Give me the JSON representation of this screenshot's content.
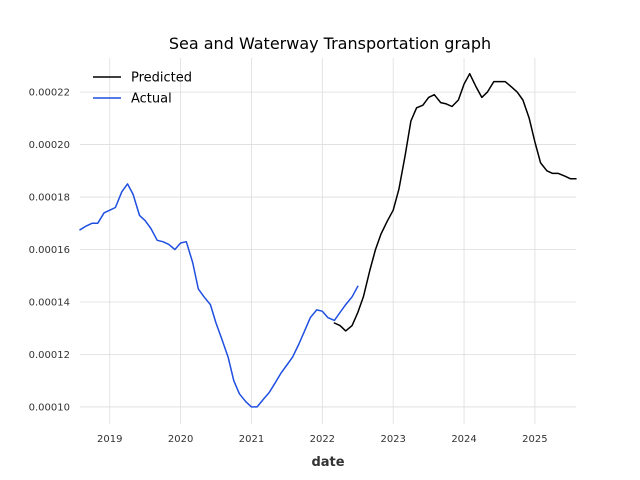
{
  "chart_data": {
    "type": "line",
    "title": "Sea and Waterway Transportation graph",
    "xlabel": "date",
    "ylabel": "",
    "xlim": [
      2018.58,
      2025.58
    ],
    "ylim": [
      9.35e-05,
      0.000233
    ],
    "x_ticks": [
      2019,
      2020,
      2021,
      2022,
      2023,
      2024,
      2025
    ],
    "x_tick_labels": [
      "2019",
      "2020",
      "2021",
      "2022",
      "2023",
      "2024",
      "2025"
    ],
    "y_ticks": [
      0.0001,
      0.00012,
      0.00014,
      0.00016,
      0.00018,
      0.0002,
      0.00022
    ],
    "y_tick_labels": [
      "0.00010",
      "0.00012",
      "0.00014",
      "0.00016",
      "0.00018",
      "0.00020",
      "0.00022"
    ],
    "grid": true,
    "legend_position": "top-left",
    "series": [
      {
        "name": "Predicted",
        "color": "#000000",
        "x": [
          2022.17,
          2022.25,
          2022.33,
          2022.42,
          2022.5,
          2022.58,
          2022.67,
          2022.75,
          2022.83,
          2022.92,
          2023.0,
          2023.08,
          2023.17,
          2023.25,
          2023.33,
          2023.42,
          2023.5,
          2023.58,
          2023.67,
          2023.75,
          2023.83,
          2023.92,
          2024.0,
          2024.08,
          2024.17,
          2024.25,
          2024.33,
          2024.42,
          2024.5,
          2024.58,
          2024.67,
          2024.75,
          2024.83,
          2024.92,
          2025.0,
          2025.08,
          2025.17,
          2025.25,
          2025.33,
          2025.42,
          2025.5,
          2025.58
        ],
        "values": [
          0.000132,
          0.000131,
          0.000129,
          0.000131,
          0.000136,
          0.000142,
          0.000152,
          0.00016,
          0.000166,
          0.000171,
          0.000175,
          0.000183,
          0.000196,
          0.000209,
          0.000214,
          0.000215,
          0.000218,
          0.000219,
          0.000216,
          0.0002155,
          0.0002145,
          0.000217,
          0.000223,
          0.000227,
          0.000222,
          0.000218,
          0.00022,
          0.000224,
          0.000224,
          0.000224,
          0.000222,
          0.00022,
          0.000217,
          0.00021,
          0.000201,
          0.000193,
          0.00019,
          0.000189,
          0.000189,
          0.000188,
          0.000187,
          0.000187
        ]
      },
      {
        "name": "Actual",
        "color": "#1f4fe0",
        "x": [
          2018.58,
          2018.67,
          2018.75,
          2018.83,
          2018.92,
          2019.0,
          2019.08,
          2019.17,
          2019.25,
          2019.33,
          2019.42,
          2019.5,
          2019.58,
          2019.67,
          2019.75,
          2019.83,
          2019.92,
          2020.0,
          2020.08,
          2020.17,
          2020.25,
          2020.33,
          2020.42,
          2020.5,
          2020.58,
          2020.67,
          2020.75,
          2020.83,
          2020.92,
          2021.0,
          2021.08,
          2021.17,
          2021.25,
          2021.33,
          2021.42,
          2021.5,
          2021.58,
          2021.67,
          2021.75,
          2021.83,
          2021.92,
          2022.0,
          2022.08,
          2022.17,
          2022.25,
          2022.33,
          2022.42,
          2022.5
        ],
        "values": [
          0.0001675,
          0.000169,
          0.00017,
          0.00017,
          0.000174,
          0.000175,
          0.000176,
          0.000182,
          0.000185,
          0.000181,
          0.000173,
          0.000171,
          0.000168,
          0.0001635,
          0.000163,
          0.000162,
          0.00016,
          0.0001625,
          0.000163,
          0.000155,
          0.000145,
          0.000142,
          0.000139,
          0.000132,
          0.000126,
          0.000119,
          0.00011,
          0.000105,
          0.000102,
          0.0001,
          0.0001,
          0.000103,
          0.0001055,
          0.000109,
          0.000113,
          0.000116,
          0.000119,
          0.000124,
          0.000129,
          0.000134,
          0.000137,
          0.0001365,
          0.000134,
          0.000133,
          0.000136,
          0.000139,
          0.000142,
          0.000146
        ]
      }
    ]
  }
}
